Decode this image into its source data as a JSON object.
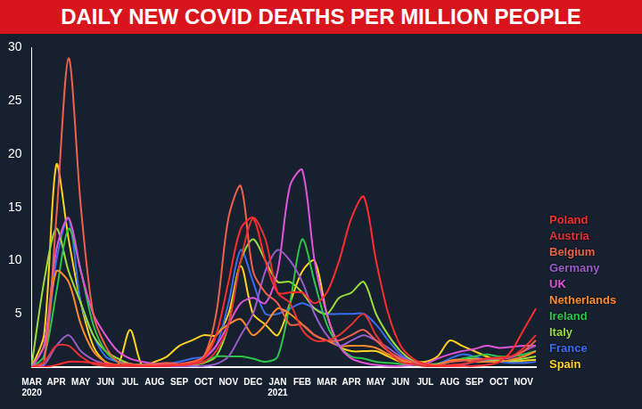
{
  "chart_data": {
    "type": "line",
    "title": "DAILY NEW COVID DEATHS PER MILLION PEOPLE",
    "categories": [
      "MAR 2020",
      null,
      "APR",
      null,
      "MAY",
      null,
      "JUN",
      null,
      "JUL",
      null,
      "AUG",
      null,
      "SEP",
      null,
      "OCT",
      null,
      "NOV",
      null,
      "DEC",
      null,
      "JAN 2021",
      null,
      "FEB",
      null,
      "MAR",
      null,
      "APR",
      null,
      "MAY",
      null,
      "JUN",
      null,
      "JUL",
      null,
      "AUG",
      null,
      "SEP",
      null,
      "OCT",
      null,
      "NOV",
      null
    ],
    "series": [
      {
        "name": "Poland",
        "color": "#ff2d2d",
        "values": [
          0,
          0,
          0.2,
          0.5,
          0.5,
          0.4,
          0.3,
          0.2,
          0.2,
          0.1,
          0.1,
          0.2,
          0.2,
          0.3,
          0.8,
          3,
          8,
          13,
          14,
          10,
          7,
          7,
          7,
          6,
          7,
          10,
          14,
          16,
          10,
          5,
          2,
          0.8,
          0.3,
          0.1,
          0.1,
          0.1,
          0.1,
          0.2,
          0.5,
          1.5,
          3.5,
          5.5
        ]
      },
      {
        "name": "Austria",
        "color": "#e63232",
        "values": [
          0,
          0.5,
          2,
          2,
          1,
          0.3,
          0.1,
          0.1,
          0.1,
          0.1,
          0.1,
          0.1,
          0.2,
          0.3,
          0.5,
          1.5,
          4,
          10,
          14,
          12,
          7,
          6,
          3.5,
          2.5,
          2.5,
          3,
          4,
          5,
          3,
          1.5,
          0.5,
          0.3,
          0.1,
          0.1,
          0.2,
          0.3,
          0.5,
          0.8,
          0.9,
          1,
          1.8,
          3
        ]
      },
      {
        "name": "Belgium",
        "color": "#f0604a",
        "values": [
          0,
          0.5,
          14,
          29,
          15,
          5,
          2,
          0.5,
          0.3,
          0.2,
          0.3,
          0.4,
          0.3,
          0.5,
          1,
          5,
          14,
          17,
          9,
          7,
          6,
          4,
          4,
          3,
          2.5,
          2.5,
          3,
          3.5,
          2.5,
          1.5,
          0.8,
          0.5,
          0.3,
          0.2,
          0.5,
          0.6,
          0.7,
          0.8,
          0.8,
          1,
          1.5,
          2.5
        ]
      },
      {
        "name": "Germany",
        "color": "#9a5cc8",
        "values": [
          0,
          0.2,
          2,
          3,
          1.5,
          0.7,
          0.3,
          0.1,
          0.1,
          0.05,
          0.05,
          0.05,
          0.05,
          0.1,
          0.1,
          0.3,
          1,
          3,
          5,
          9,
          11,
          10,
          8,
          5,
          3,
          2,
          2.5,
          3,
          2.5,
          1.8,
          1,
          0.5,
          0.2,
          0.1,
          0.1,
          0.2,
          0.5,
          0.7,
          0.8,
          0.9,
          1.5,
          2
        ]
      },
      {
        "name": "UK",
        "color": "#e055d8",
        "values": [
          0,
          2,
          11,
          14,
          9,
          5,
          3,
          1.5,
          0.8,
          0.5,
          0.3,
          0.2,
          0.1,
          0.2,
          0.8,
          2,
          4,
          6,
          6.5,
          6,
          9,
          17,
          18.5,
          10,
          5,
          2,
          0.8,
          0.4,
          0.2,
          0.1,
          0.1,
          0.2,
          0.3,
          0.8,
          1.2,
          1.5,
          1.7,
          2,
          1.8,
          1.9,
          2,
          2
        ]
      },
      {
        "name": "Netherlands",
        "color": "#ff8a2a",
        "values": [
          0,
          2,
          9,
          8,
          4,
          1.5,
          0.5,
          0.2,
          0.1,
          0.05,
          0.1,
          0.2,
          0.2,
          0.4,
          1,
          3,
          4,
          4.5,
          3,
          4,
          5.5,
          5,
          4,
          3,
          2.5,
          2,
          2,
          2,
          1.8,
          1.2,
          0.7,
          0.3,
          0.1,
          0.2,
          0.6,
          0.7,
          0.5,
          0.5,
          0.5,
          0.7,
          1,
          1.5
        ]
      },
      {
        "name": "Ireland",
        "color": "#2ec44a",
        "values": [
          0,
          1,
          7,
          13,
          9,
          4,
          1.5,
          0.5,
          0.2,
          0.1,
          0.1,
          0.1,
          0.1,
          0.2,
          0.5,
          1,
          1,
          1,
          0.8,
          0.5,
          1,
          6,
          12,
          8,
          4,
          2,
          1,
          0.8,
          0.5,
          0.4,
          0.3,
          0.2,
          0.2,
          0.2,
          0.5,
          0.8,
          1,
          1.2,
          1,
          1,
          1.2,
          1.5
        ]
      },
      {
        "name": "Italy",
        "color": "#9bdc3c",
        "values": [
          0.2,
          8,
          13,
          9,
          6,
          3,
          1.5,
          0.8,
          0.3,
          0.2,
          0.1,
          0.1,
          0.1,
          0.2,
          0.4,
          1,
          4,
          10,
          12,
          10,
          8,
          8,
          7,
          5.5,
          5,
          6.5,
          7,
          8,
          5,
          3,
          1.5,
          0.6,
          0.3,
          0.3,
          0.5,
          0.7,
          0.8,
          0.7,
          0.6,
          0.6,
          0.8,
          1
        ]
      },
      {
        "name": "France",
        "color": "#3a6cf0",
        "values": [
          0,
          1,
          10,
          14,
          6,
          3,
          1,
          0.5,
          0.3,
          0.2,
          0.2,
          0.3,
          0.5,
          0.8,
          1,
          2,
          6,
          11,
          8,
          5,
          5,
          5.5,
          6,
          5.5,
          5,
          5,
          5,
          5,
          4,
          2.5,
          1.2,
          0.6,
          0.3,
          0.3,
          0.8,
          1.2,
          1,
          0.6,
          0.5,
          0.4,
          0.4,
          0.5
        ]
      },
      {
        "name": "Spain",
        "color": "#ffd21f",
        "values": [
          0,
          3,
          19,
          12,
          6,
          2,
          0.5,
          0.2,
          3.5,
          0.1,
          0.5,
          1,
          2,
          2.5,
          3,
          3,
          5,
          9.5,
          5,
          4,
          3,
          6,
          9,
          10,
          5,
          2,
          1.5,
          1.5,
          1.5,
          1,
          0.5,
          0.5,
          0.5,
          1,
          2.5,
          2,
          1.5,
          1,
          0.6,
          0.5,
          0.6,
          0.7
        ]
      }
    ],
    "ylim": [
      0,
      30
    ],
    "yticks": [
      5,
      10,
      15,
      20,
      25,
      30
    ],
    "grid": false,
    "legend": "right"
  }
}
